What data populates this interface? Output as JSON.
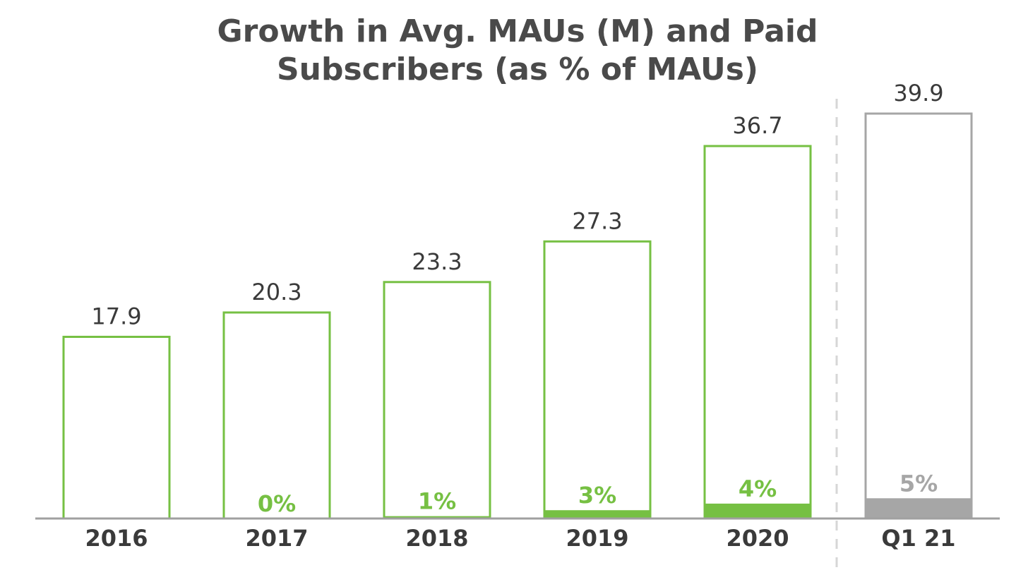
{
  "chart_data": {
    "type": "bar",
    "title_lines": [
      "Growth in Avg. MAUs (M) and Paid",
      "Subscribers (as % of MAUs)"
    ],
    "categories": [
      "2016",
      "2017",
      "2018",
      "2019",
      "2020",
      "Q1 21"
    ],
    "series": [
      {
        "values": [
          17.9,
          20.3,
          23.3,
          27.3,
          36.7,
          39.9
        ]
      },
      {
        "values": [
          null,
          0,
          1,
          3,
          4,
          5
        ]
      }
    ],
    "value_labels": [
      "17.9",
      "20.3",
      "23.3",
      "27.3",
      "36.7",
      "39.9"
    ],
    "percent_labels": [
      "",
      "0%",
      "1%",
      "3%",
      "4%",
      "5%"
    ],
    "ylim": [
      0,
      39.9
    ],
    "grid": false,
    "highlight_last_category_separated": true,
    "colors": {
      "accent": "#76c043",
      "forecast": "#a6a6a6",
      "text": "#3a3a3a",
      "title": "#4a4a4a",
      "baseline": "#a0a0a0",
      "separator": "#d6d6d6"
    }
  }
}
